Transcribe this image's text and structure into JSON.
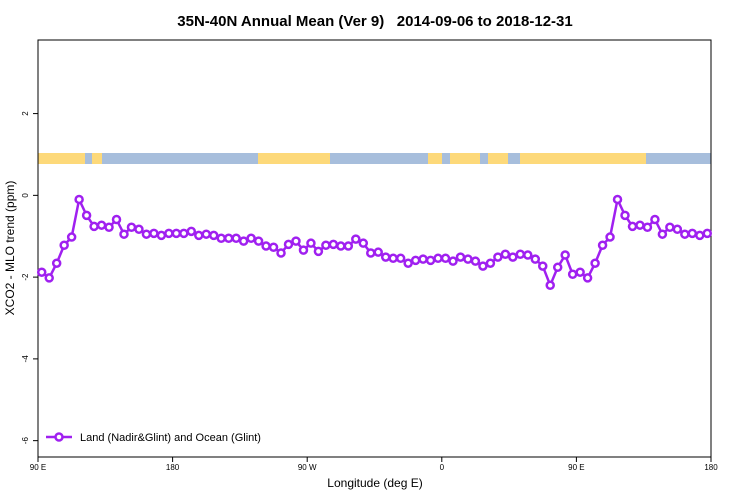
{
  "chart_data": {
    "type": "line",
    "title": "35N-40N Annual Mean (Ver 9)   2014-09-06 to 2018-12-31",
    "xlabel": "Longitude (deg E)",
    "ylabel": "XCO2 - MLO trend (ppm)",
    "x": [
      92.5,
      97.5,
      102.5,
      107.5,
      112.5,
      117.5,
      122.5,
      127.5,
      132.5,
      137.5,
      142.5,
      147.5,
      152.5,
      157.5,
      162.5,
      167.5,
      172.5,
      177.5,
      182.5,
      187.5,
      192.5,
      197.5,
      202.5,
      207.5,
      212.5,
      217.5,
      222.5,
      227.5,
      232.5,
      237.5,
      242.5,
      247.5,
      252.5,
      257.5,
      262.5,
      267.5,
      272.5,
      277.5,
      282.5,
      287.5,
      292.5,
      297.5,
      302.5,
      307.5,
      312.5,
      317.5,
      322.5,
      327.5,
      332.5,
      337.5,
      342.5,
      347.5,
      352.5,
      357.5,
      362.5,
      367.5,
      372.5,
      377.5,
      382.5,
      387.5,
      392.5,
      397.5,
      402.5,
      407.5,
      412.5,
      417.5,
      422.5,
      427.5,
      432.5,
      437.5,
      442.5,
      447.5,
      452.5,
      457.5,
      462.5,
      467.5,
      472.5,
      477.5,
      482.5,
      487.5,
      492.5,
      497.5,
      502.5,
      507.5,
      512.5,
      517.5,
      522.5,
      527.5,
      532.5,
      537.5
    ],
    "series": [
      {
        "name": "Land (Nadir&Glint) and Ocean (Glint)",
        "color": "#a020f0",
        "values": [
          -1.88,
          -2.02,
          -1.66,
          -1.22,
          -1.02,
          -0.1,
          -0.49,
          -0.76,
          -0.73,
          -0.78,
          -0.59,
          -0.95,
          -0.78,
          -0.83,
          -0.95,
          -0.93,
          -0.98,
          -0.93,
          -0.93,
          -0.93,
          -0.88,
          -0.98,
          -0.95,
          -0.98,
          -1.05,
          -1.05,
          -1.05,
          -1.12,
          -1.05,
          -1.12,
          -1.24,
          -1.27,
          -1.41,
          -1.2,
          -1.12,
          -1.34,
          -1.17,
          -1.37,
          -1.22,
          -1.2,
          -1.24,
          -1.24,
          -1.07,
          -1.17,
          -1.41,
          -1.39,
          -1.51,
          -1.54,
          -1.54,
          -1.66,
          -1.59,
          -1.56,
          -1.59,
          -1.54,
          -1.54,
          -1.61,
          -1.51,
          -1.56,
          -1.61,
          -1.73,
          -1.66,
          -1.51,
          -1.44,
          -1.51,
          -1.44,
          -1.46,
          -1.56,
          -1.73,
          -2.2,
          -1.76,
          -1.46,
          -1.93,
          -1.88,
          -2.02,
          -1.66,
          -1.22,
          -1.02,
          -0.1,
          -0.49,
          -0.76,
          -0.73,
          -0.78,
          -0.59,
          -0.95,
          -0.78,
          -0.83,
          -0.95,
          -0.93,
          -0.98,
          -0.93
        ]
      }
    ],
    "xlim": [
      90,
      540
    ],
    "xticks": [
      {
        "value": 90,
        "label": "90 E"
      },
      180,
      {
        "value": 270,
        "label": "90 W"
      },
      {
        "value": 360,
        "label": "0"
      },
      {
        "value": 450,
        "label": "90 E"
      },
      {
        "value": 540,
        "label": "180"
      }
    ],
    "ylim": [
      -6.4,
      3.8
    ],
    "yticks": [
      2,
      0,
      -2,
      -4,
      -6
    ],
    "legend": "bottom-left"
  }
}
